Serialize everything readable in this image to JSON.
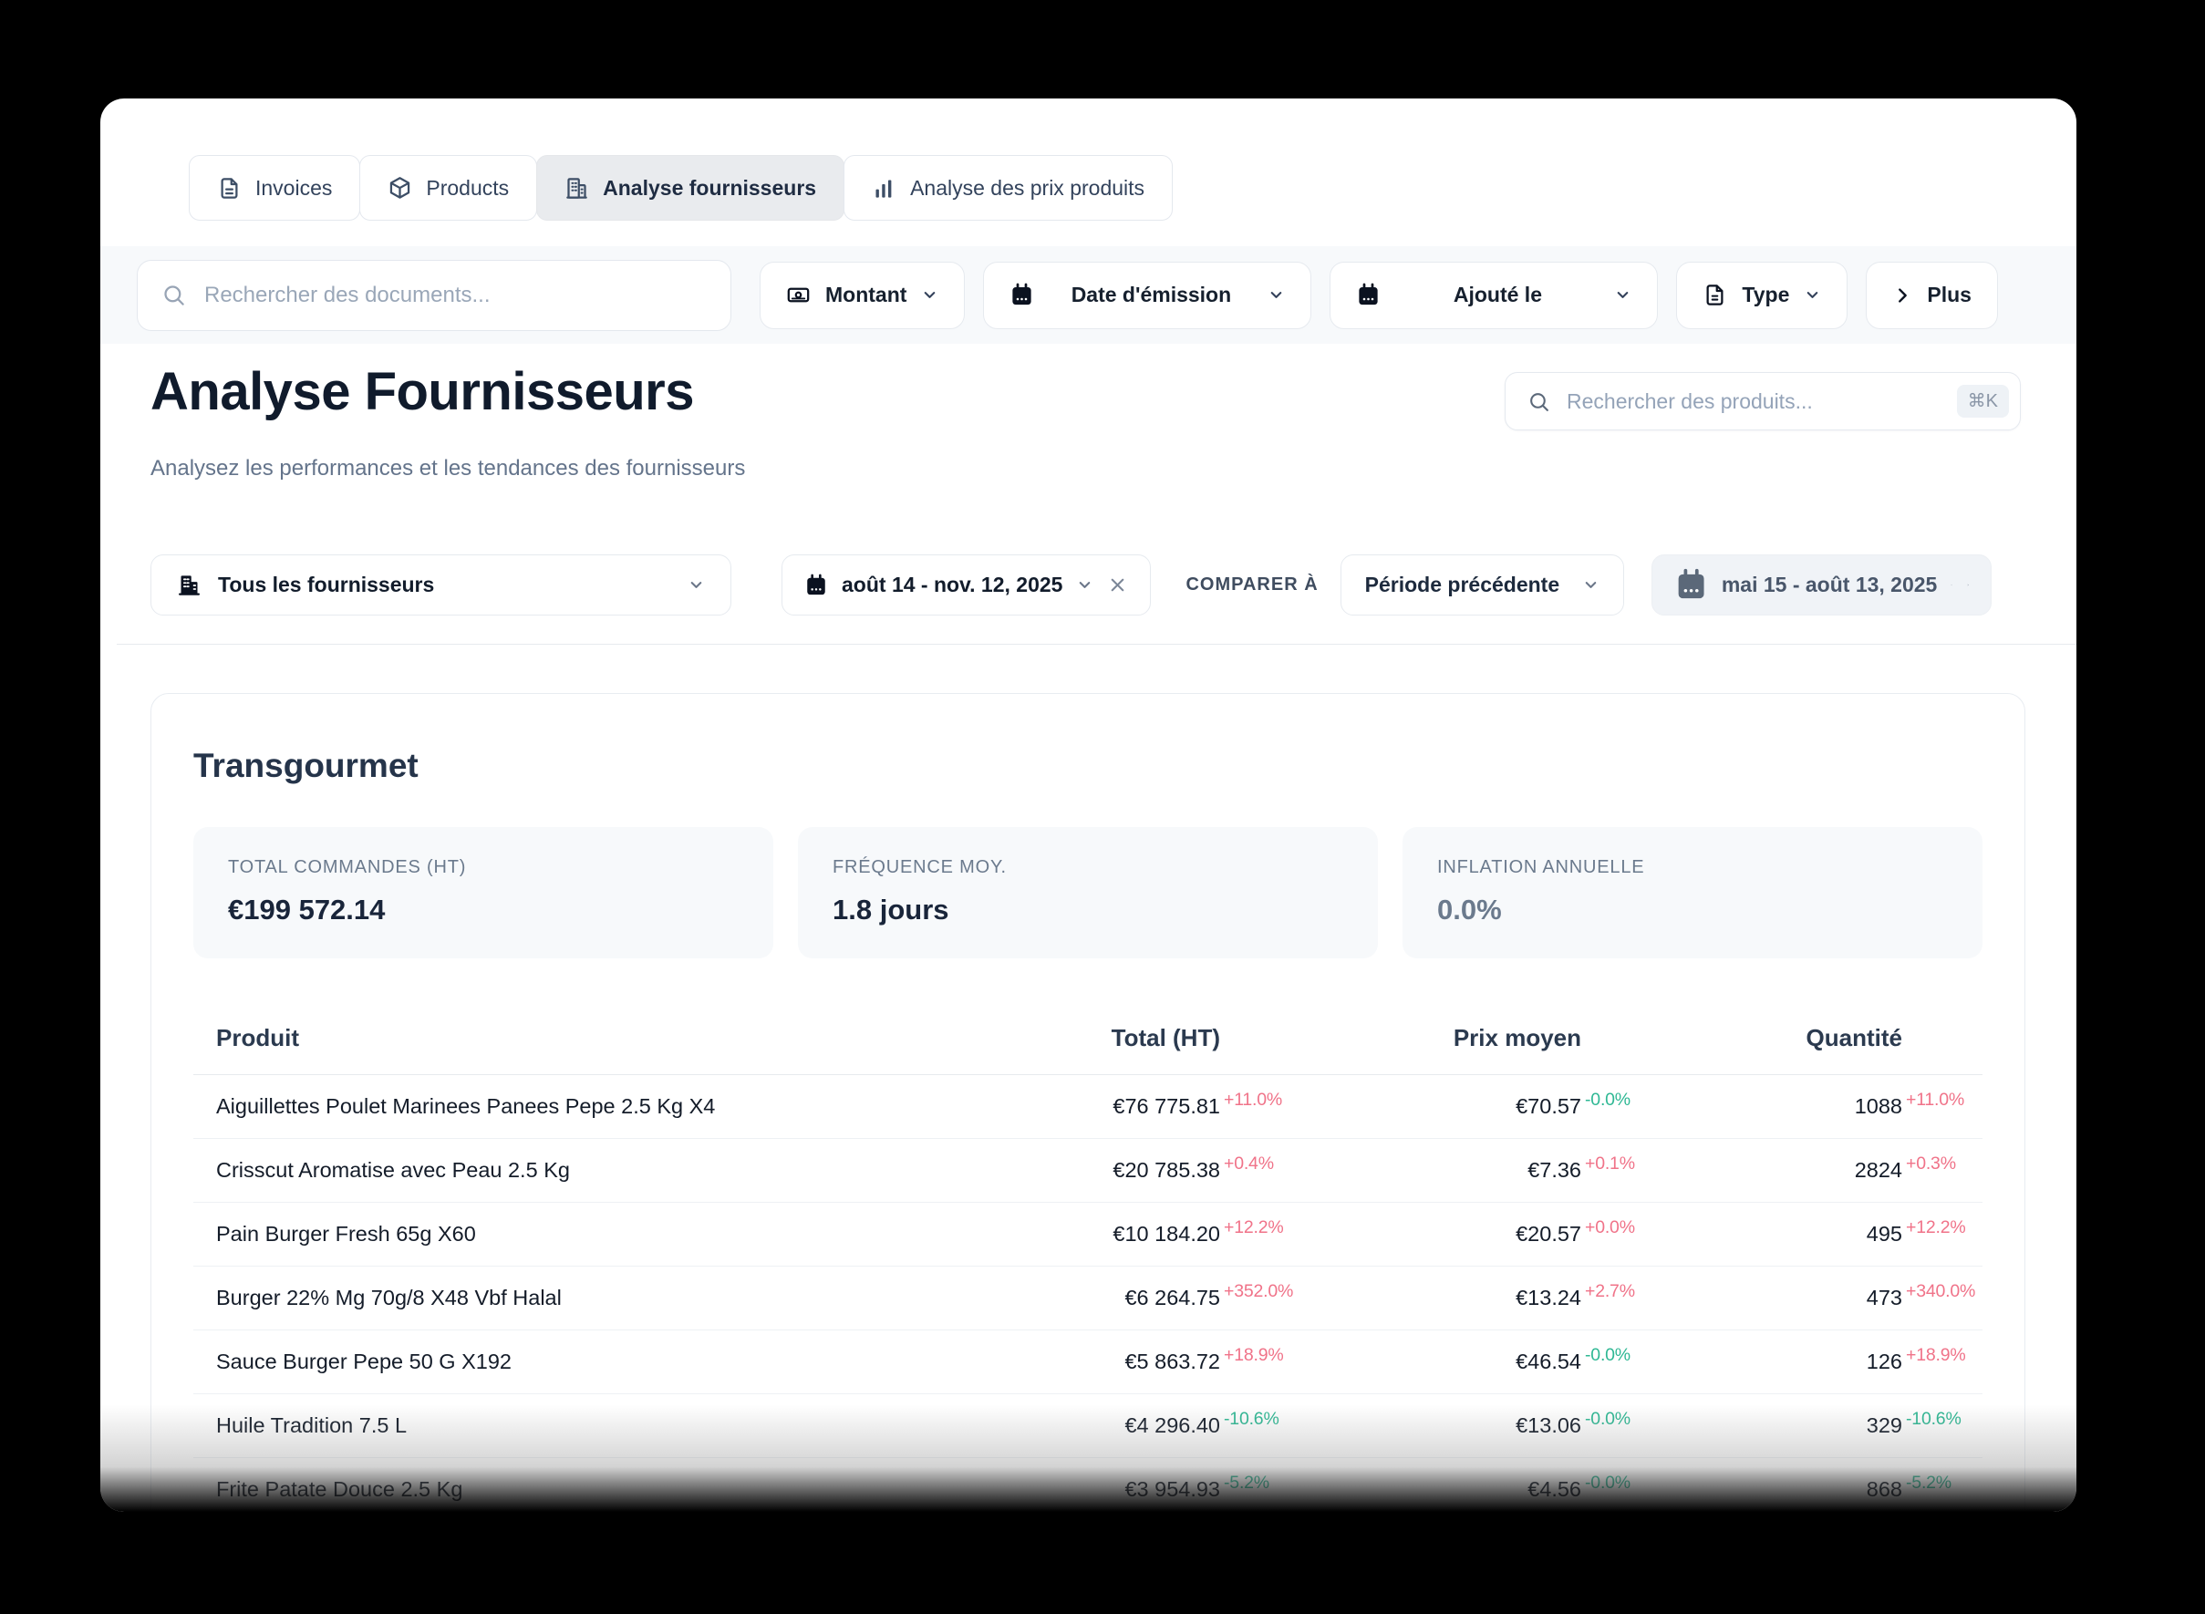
{
  "tabs": [
    {
      "label": "Invoices",
      "icon": "file-text-icon"
    },
    {
      "label": "Products",
      "icon": "package-icon"
    },
    {
      "label": "Analyse fournisseurs",
      "icon": "building-icon",
      "active": true
    },
    {
      "label": "Analyse des prix produits",
      "icon": "bar-chart-icon"
    }
  ],
  "filter_bar": {
    "search_placeholder": "Rechercher des documents...",
    "montant_label": "Montant",
    "date_emission_label": "Date d'émission",
    "ajoute_le_label": "Ajouté le",
    "type_label": "Type",
    "plus_label": "Plus"
  },
  "page": {
    "title": "Analyse Fournisseurs",
    "subtitle": "Analysez les performances et les tendances des fournisseurs"
  },
  "product_search": {
    "placeholder": "Rechercher des produits...",
    "shortcut": "⌘K"
  },
  "supplier_filters": {
    "all_suppliers_label": "Tous les fournisseurs",
    "date_range": "août 14 - nov. 12, 2025",
    "compare_label": "COMPARER À",
    "compare_mode": "Période précédente",
    "compare_range": "mai 15 - août 13, 2025"
  },
  "supplier_card": {
    "name": "Transgourmet",
    "stats": [
      {
        "label": "TOTAL COMMANDES (HT)",
        "value": "€199 572.14"
      },
      {
        "label": "FRÉQUENCE MOY.",
        "value": "1.8 jours"
      },
      {
        "label": "INFLATION ANNUELLE",
        "value": "0.0%"
      }
    ],
    "table": {
      "headers": [
        "Produit",
        "Total (HT)",
        "Prix moyen",
        "Quantité"
      ],
      "rows": [
        {
          "product": "Aiguillettes Poulet Marinees Panees Pepe 2.5 Kg X4",
          "total": "€76 775.81",
          "total_pct": "+11.0%",
          "prix": "€70.57",
          "prix_pct": "-0.0%",
          "qty": "1088",
          "qty_pct": "+11.0%"
        },
        {
          "product": "Crisscut Aromatise avec Peau 2.5 Kg",
          "total": "€20 785.38",
          "total_pct": "+0.4%",
          "prix": "€7.36",
          "prix_pct": "+0.1%",
          "qty": "2824",
          "qty_pct": "+0.3%"
        },
        {
          "product": "Pain Burger Fresh 65g X60",
          "total": "€10 184.20",
          "total_pct": "+12.2%",
          "prix": "€20.57",
          "prix_pct": "+0.0%",
          "qty": "495",
          "qty_pct": "+12.2%"
        },
        {
          "product": "Burger 22% Mg 70g/8 X48 Vbf Halal",
          "total": "€6 264.75",
          "total_pct": "+352.0%",
          "prix": "€13.24",
          "prix_pct": "+2.7%",
          "qty": "473",
          "qty_pct": "+340.0%"
        },
        {
          "product": "Sauce Burger Pepe 50 G X192",
          "total": "€5 863.72",
          "total_pct": "+18.9%",
          "prix": "€46.54",
          "prix_pct": "-0.0%",
          "qty": "126",
          "qty_pct": "+18.9%"
        },
        {
          "product": "Huile Tradition 7.5 L",
          "total": "€4 296.40",
          "total_pct": "-10.6%",
          "prix": "€13.06",
          "prix_pct": "-0.0%",
          "qty": "329",
          "qty_pct": "-10.6%"
        },
        {
          "product": "Frite Patate Douce 2.5 Kg",
          "total": "€3 954.93",
          "total_pct": "-5.2%",
          "prix": "€4.56",
          "prix_pct": "-0.0%",
          "qty": "868",
          "qty_pct": "-5.2%"
        }
      ]
    }
  },
  "colors": {
    "pct_up": "#f07389",
    "pct_down": "#2fb894"
  }
}
